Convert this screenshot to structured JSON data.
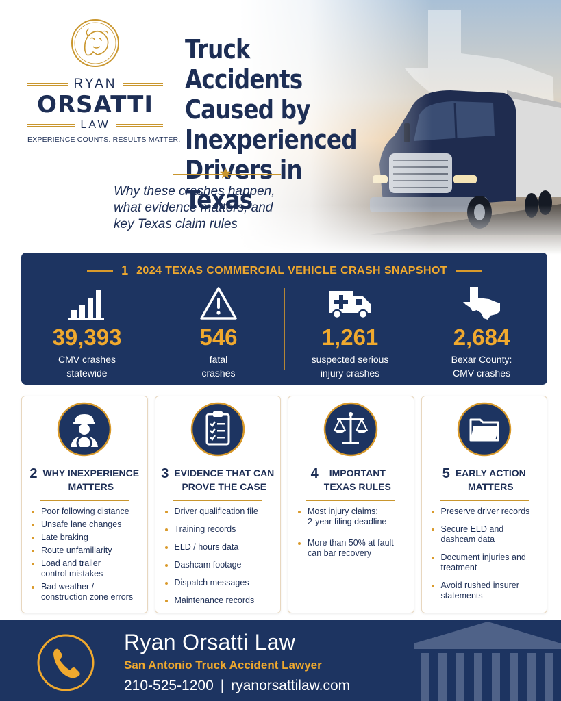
{
  "logo": {
    "first": "RYAN",
    "last": "ORSATTI",
    "law": "LAW",
    "tagline": "EXPERIENCE COUNTS. RESULTS MATTER.",
    "icon": "lion-head-icon"
  },
  "header": {
    "title_lines": [
      "Truck Accidents",
      "Caused by",
      "Inexperienced",
      "Drivers in Texas"
    ],
    "subtitle_lines": [
      "Why these crashes happen,",
      "what evidence matters, and",
      "key Texas claim rules"
    ]
  },
  "snapshot": {
    "number": "1",
    "title": "2024 TEXAS COMMERCIAL VEHICLE CRASH SNAPSHOT",
    "stats": [
      {
        "icon": "bar-chart-icon",
        "value": "39,393",
        "label_lines": [
          "CMV crashes",
          "statewide"
        ]
      },
      {
        "icon": "warning-icon",
        "value": "546",
        "label_lines": [
          "fatal",
          "crashes"
        ]
      },
      {
        "icon": "ambulance-icon",
        "value": "1,261",
        "label_lines": [
          "suspected serious",
          "injury crashes"
        ]
      },
      {
        "icon": "texas-map-icon",
        "value": "2,684",
        "label_lines": [
          "Bexar County:",
          "CMV crashes"
        ]
      }
    ]
  },
  "cards": [
    {
      "icon": "driver-icon",
      "number": "2",
      "title_lines": [
        "WHY INEXPERIENCE",
        "MATTERS"
      ],
      "items": [
        [
          "Poor following distance"
        ],
        [
          "Unsafe lane changes"
        ],
        [
          "Late braking"
        ],
        [
          "Route unfamiliarity"
        ],
        [
          "Load and trailer",
          "control mistakes"
        ],
        [
          "Bad weather /",
          "construction zone errors"
        ]
      ]
    },
    {
      "icon": "clipboard-icon",
      "number": "3",
      "title_lines": [
        "EVIDENCE THAT CAN",
        "PROVE THE CASE"
      ],
      "items": [
        [
          "Driver qualification file"
        ],
        [
          "Training records"
        ],
        [
          "ELD / hours data"
        ],
        [
          "Dashcam footage"
        ],
        [
          "Dispatch messages"
        ],
        [
          "Maintenance records"
        ]
      ]
    },
    {
      "icon": "scales-icon",
      "number": "4",
      "title_lines": [
        "IMPORTANT",
        "TEXAS RULES"
      ],
      "items": [
        [
          "Most injury claims:",
          "2-year filing deadline"
        ],
        [
          "More than 50% at fault",
          "can bar recovery"
        ]
      ]
    },
    {
      "icon": "folder-icon",
      "number": "5",
      "title_lines": [
        "EARLY ACTION",
        "MATTERS"
      ],
      "items": [
        [
          "Preserve driver records"
        ],
        [
          "Secure ELD and",
          "dashcam data"
        ],
        [
          "Document injuries and",
          "treatment"
        ],
        [
          "Avoid rushed insurer",
          "statements"
        ]
      ]
    }
  ],
  "footer": {
    "name": "Ryan Orsatti Law",
    "subtitle": "San Antonio Truck Accident Lawyer",
    "phone": "210-525-1200",
    "separator": "|",
    "website": "ryanorsattilaw.com",
    "icon": "phone-icon"
  },
  "colors": {
    "navy": "#1d3461",
    "gold": "#f0a92e",
    "text": "#1d2e55"
  }
}
